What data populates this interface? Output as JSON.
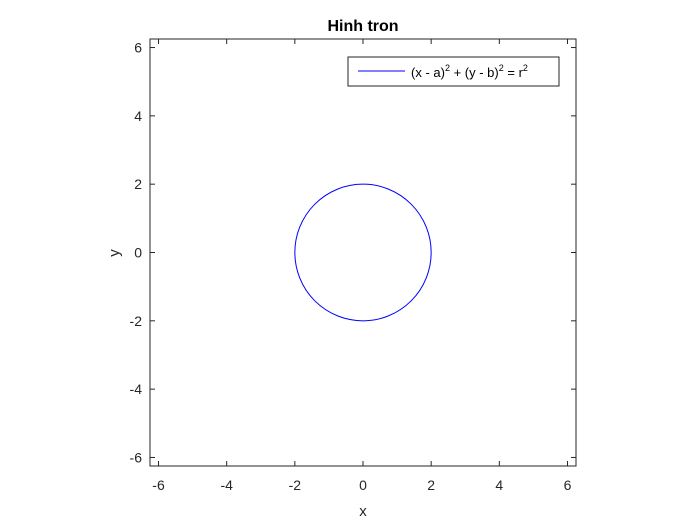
{
  "chart_data": {
    "type": "line",
    "title": "Hinh tron",
    "xlabel": "x",
    "ylabel": "y",
    "xlim": [
      -6.25,
      6.25
    ],
    "ylim": [
      -6.25,
      6.25
    ],
    "xticks": [
      -6,
      -4,
      -2,
      0,
      2,
      4,
      6
    ],
    "yticks": [
      -6,
      -4,
      -2,
      0,
      2,
      4,
      6
    ],
    "grid": false,
    "legend_position": "top-right",
    "series": [
      {
        "name": "(x - a)^2 + (y - b)^2 = r^2",
        "shape": "circle",
        "center": [
          0,
          0
        ],
        "radius": 2,
        "color": "#0000ff"
      }
    ],
    "legend": {
      "parts": [
        {
          "text": "(x - a)",
          "sup": "2"
        },
        {
          "text": " + (y - b)",
          "sup": "2"
        },
        {
          "text": " = r",
          "sup": "2"
        }
      ]
    }
  }
}
